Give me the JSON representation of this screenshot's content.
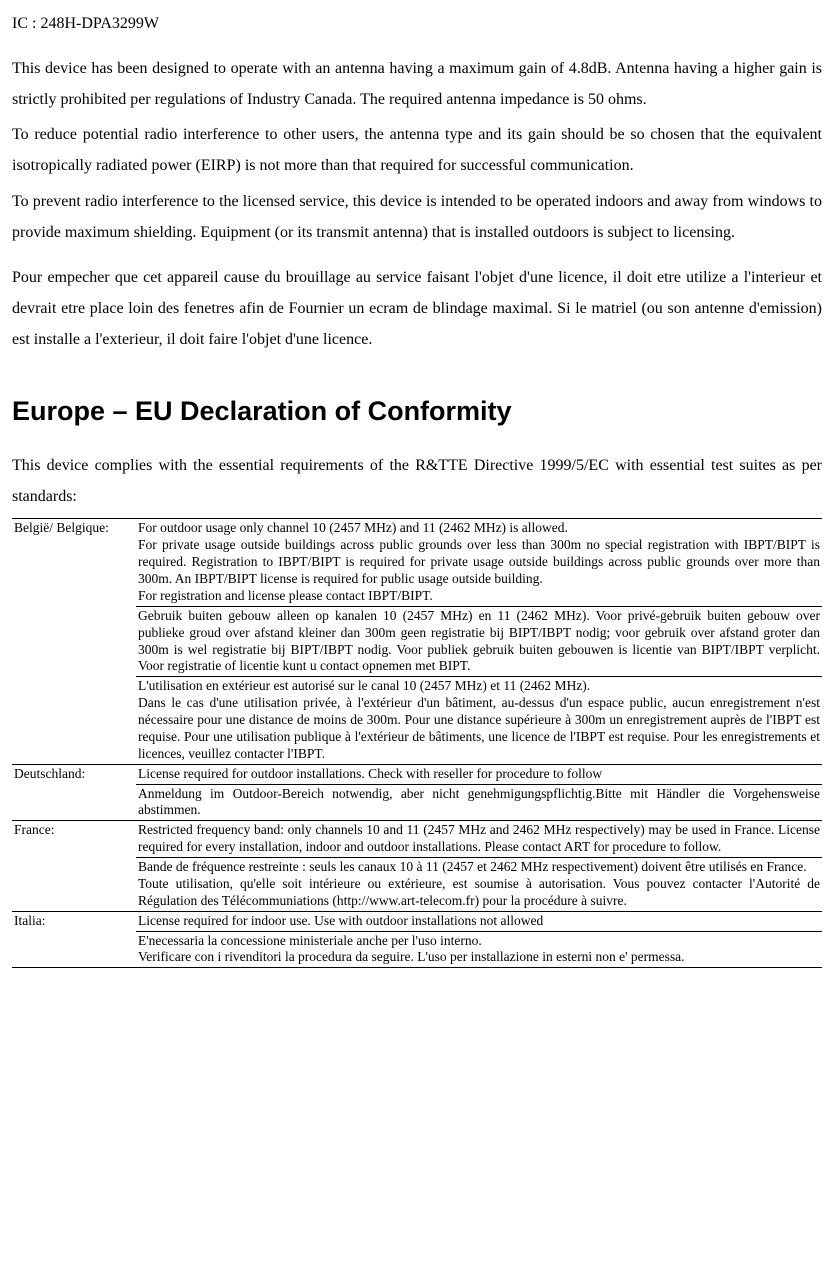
{
  "ic_line": "IC : 248H-DPA3299W",
  "paragraphs": [
    "This device has been designed to operate with an antenna having a maximum gain of 4.8dB. Antenna having a higher gain is strictly prohibited per regulations of Industry Canada. The required antenna impedance is 50 ohms.",
    "To reduce potential radio interference to other users, the antenna type and its gain should be so chosen that the equivalent isotropically radiated power (EIRP) is not more than that required for successful communication.",
    "To prevent radio interference to the licensed service, this device is intended to be operated indoors and away from windows to provide maximum shielding. Equipment (or its transmit antenna) that is installed outdoors is subject to licensing.",
    "Pour empecher que cet appareil cause du brouillage au service faisant l'objet d'une licence, il doit etre utilize a l'interieur et devrait etre place loin des fenetres afin de Fournier un ecram de blindage maximal. Si le matriel (ou son antenne d'emission) est installe a l'exterieur, il doit faire l'objet d'une licence."
  ],
  "heading": "Europe – EU Declaration of Conformity",
  "intro": "This device complies with the essential requirements of the R&TTE Directive 1999/5/EC with essential test suites as per standards:",
  "rows": [
    {
      "country": "België/ Belgique:",
      "desc": "For outdoor usage only channel 10 (2457 MHz) and 11 (2462 MHz) is allowed.\nFor private usage outside buildings across public grounds over less than 300m no special registration with IBPT/BIPT is required. Registration to IBPT/BIPT is required for private usage outside buildings across public grounds over more than 300m. An IBPT/BIPT license is required for public usage outside building.\nFor registration and license please contact IBPT/BIPT."
    },
    {
      "country": "",
      "desc": "Gebruik buiten gebouw alleen op kanalen 10 (2457 MHz) en 11 (2462 MHz). Voor privé-gebruik buiten gebouw over publieke groud over afstand kleiner dan 300m geen registratie bij BIPT/IBPT nodig; voor gebruik over afstand groter dan 300m is wel registratie bij BIPT/IBPT nodig. Voor publiek gebruik buiten gebouwen is licentie van BIPT/IBPT verplicht. Voor registratie of licentie kunt u contact opnemen met BIPT."
    },
    {
      "country": "",
      "desc": "L'utilisation en extérieur est autorisé sur le canal 10 (2457 MHz) et 11 (2462 MHz).\nDans le cas d'une utilisation privée, à l'extérieur d'un bâtiment, au-dessus d'un espace public, aucun enregistrement n'est nécessaire pour une distance de moins de 300m. Pour une distance supérieure à 300m un enregistrement auprès de l'IBPT est requise. Pour une utilisation publique à l'extérieur de bâtiments, une licence de l'IBPT est requise. Pour les enregistrements et licences, veuillez contacter l'IBPT."
    },
    {
      "country": "Deutschland:",
      "desc": "License required for outdoor installations. Check with reseller for procedure to follow"
    },
    {
      "country": "",
      "desc": "Anmeldung im Outdoor-Bereich notwendig, aber nicht genehmigungspflichtig.Bitte mit Händler die Vorgehensweise abstimmen."
    },
    {
      "country": "France:",
      "desc": "Restricted frequency band: only channels 10 and 11 (2457 MHz and 2462 MHz respectively) may be used in France. License required for every installation, indoor and outdoor installations. Please contact ART for procedure to follow."
    },
    {
      "country": "",
      "desc": "Bande de fréquence restreinte : seuls les canaux 10 à 11 (2457 et 2462 MHz respectivement) doivent être utilisés en France.\nToute utilisation, qu'elle soit intérieure ou extérieure, est soumise à autorisation. Vous pouvez contacter l'Autorité de Régulation des Télécommuniations (http://www.art-telecom.fr) pour la procédure à suivre."
    },
    {
      "country": "Italia:",
      "desc": "License required for indoor use. Use with outdoor installations not allowed"
    },
    {
      "country": "",
      "desc": "E'necessaria la concessione ministeriale anche per l'uso interno.\nVerificare con i rivenditori la procedura da seguire. L'uso per installazione in esterni non e' permessa."
    }
  ]
}
